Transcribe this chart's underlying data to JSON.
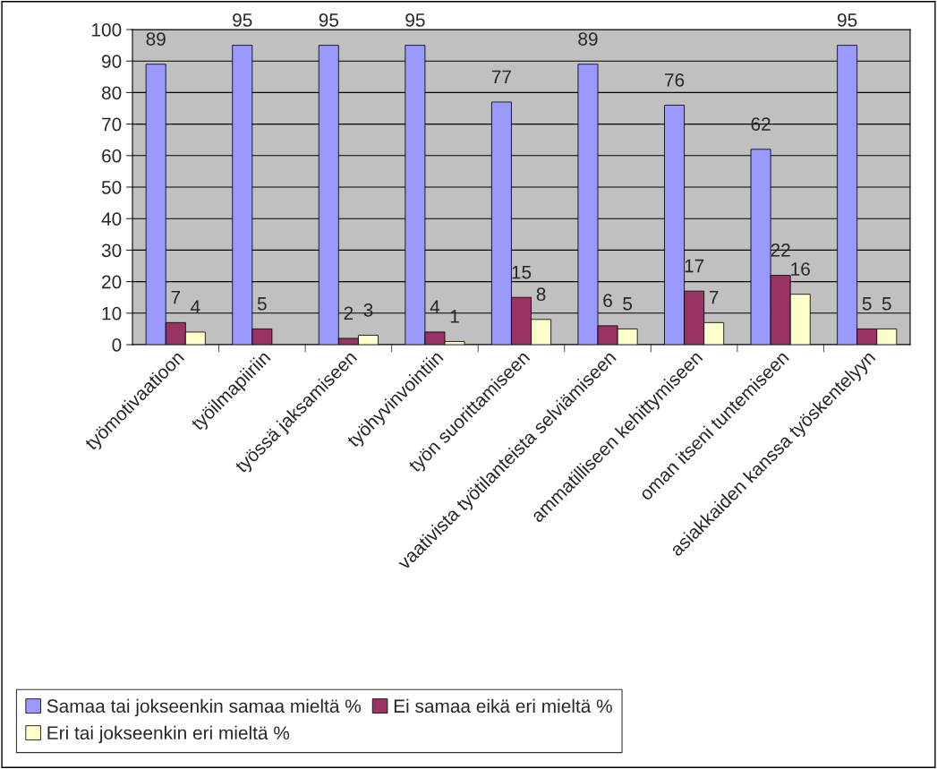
{
  "chart_data": {
    "type": "bar",
    "categories": [
      "työmotivaatioon",
      "työilmapiiriin",
      "työssä jaksamiseen",
      "työhyvinvointiin",
      "työn suorittamiseen",
      "vaativista työtilanteista selviämiseen",
      "ammatilliseen kehittymiseen",
      "oman itseni tuntemiseen",
      "asiakkaiden kanssa työskentelyyn"
    ],
    "series": [
      {
        "name": "Samaa tai jokseenkin samaa mieltä %",
        "color": "#9999ff",
        "values": [
          89,
          95,
          95,
          95,
          77,
          89,
          76,
          62,
          95
        ]
      },
      {
        "name": "Ei samaa eikä eri mieltä %",
        "color": "#993366",
        "values": [
          7,
          5,
          2,
          4,
          15,
          6,
          17,
          22,
          5
        ]
      },
      {
        "name": "Eri tai jokseenkin eri mieltä %",
        "color": "#ffffcc",
        "values": [
          4,
          null,
          3,
          1,
          8,
          5,
          7,
          16,
          5
        ]
      }
    ],
    "ylim": [
      0,
      100
    ],
    "yticks": [
      0,
      10,
      20,
      30,
      40,
      50,
      60,
      70,
      80,
      90,
      100
    ],
    "grid": "y",
    "legend": "bottom",
    "data_labels": true
  }
}
